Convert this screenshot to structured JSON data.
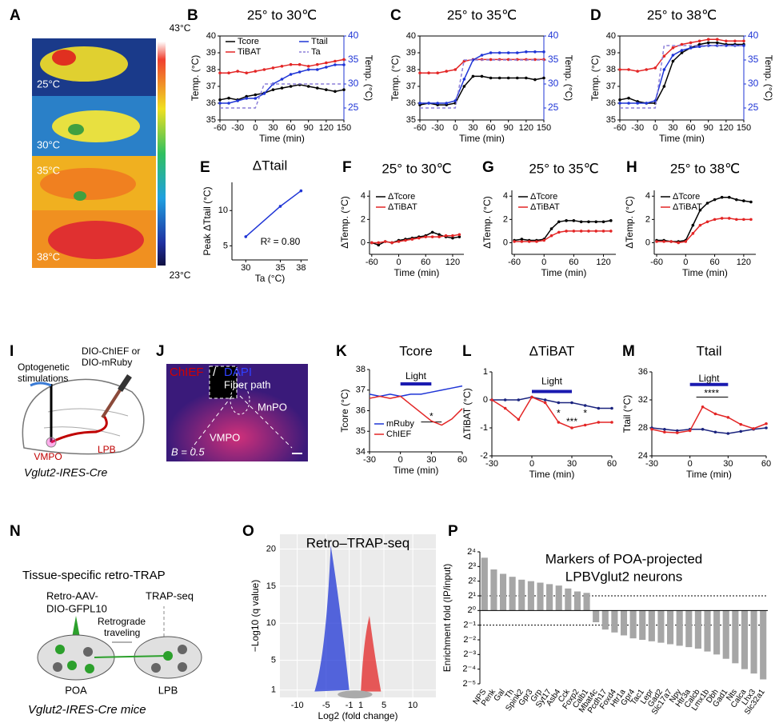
{
  "panel_labels": [
    "A",
    "B",
    "C",
    "D",
    "E",
    "F",
    "G",
    "H",
    "I",
    "J",
    "K",
    "L",
    "M",
    "N",
    "O",
    "P"
  ],
  "panel_a": {
    "scale_max": "43°C",
    "scale_min": "23°C",
    "conditions": [
      "25°C",
      "30°C",
      "35°C",
      "38°C"
    ]
  },
  "panel_i": {
    "fiber": [
      "Optogenetic",
      "stimulations"
    ],
    "virus": [
      "DIO-ChIEF or",
      "DIO-mRuby"
    ],
    "source": "VMPO",
    "target": "LPB",
    "mouse": "Vglut2-IRES-Cre"
  },
  "panel_j": {
    "stain": "ChIEF",
    "separator": "/",
    "counterstain": "DAPI",
    "fiber": "Fiber path",
    "region_1": "MnPO",
    "region_2": "VMPO",
    "bregma": "B = 0.5"
  },
  "panel_n": {
    "title": "Tissue-specific retro-TRAP",
    "virus": [
      "Retro-AAV-",
      "DIO-GFPL10"
    ],
    "readout": "TRAP-seq",
    "transport": [
      "Retrograde",
      "traveling"
    ],
    "source": "POA",
    "target": "LPB",
    "mouse": "Vglut2-IRES-Cre mice"
  },
  "chart_data": [
    {
      "type": "line",
      "title": "25° to 30℃",
      "xlabel": "Time (min)",
      "ylabel": "Temp. (°C)",
      "y2label": "Temp. (°C)",
      "markers": true,
      "x": [
        -60,
        -45,
        -30,
        -15,
        0,
        15,
        30,
        45,
        60,
        75,
        90,
        105,
        120,
        135,
        150
      ],
      "xlim": [
        -60,
        150
      ],
      "xticks": [
        -60,
        -30,
        0,
        30,
        60,
        90,
        120,
        150
      ],
      "ylim": [
        35,
        40
      ],
      "yticks": [
        35,
        36,
        37,
        38,
        39,
        40
      ],
      "y2lim": [
        22.5,
        40
      ],
      "y2ticks": [
        25,
        30,
        35,
        40
      ],
      "series": [
        {
          "name": "Tcore",
          "color": "#000000",
          "values": [
            36.2,
            36.3,
            36.2,
            36.4,
            36.5,
            36.6,
            36.8,
            36.9,
            37.0,
            37.1,
            37.0,
            36.9,
            36.8,
            36.7,
            36.8
          ]
        },
        {
          "name": "TiBAT",
          "color": "#e32626",
          "values": [
            37.8,
            37.8,
            37.9,
            37.8,
            37.9,
            38.0,
            38.1,
            38.2,
            38.3,
            38.3,
            38.2,
            38.3,
            38.4,
            38.5,
            38.6
          ]
        },
        {
          "name": "Ttail",
          "color": "#1f35d6",
          "axis": "y2",
          "values": [
            26,
            26,
            26.5,
            27,
            27,
            28,
            30,
            31,
            32,
            32.5,
            33,
            33,
            33.5,
            34,
            34
          ]
        },
        {
          "name": "Ta",
          "color": "#8c7fd9",
          "axis": "y2",
          "line_style": "dashed",
          "values": [
            25,
            25,
            25,
            25,
            25,
            30,
            30,
            30,
            30,
            30,
            30,
            30,
            30,
            30,
            30
          ]
        }
      ]
    },
    {
      "type": "line",
      "title": "25° to 35℃",
      "xlabel": "Time (min)",
      "ylabel": "Temp. (°C)",
      "y2label": "Temp. (°C)",
      "markers": true,
      "x": [
        -60,
        -45,
        -30,
        -15,
        0,
        15,
        30,
        45,
        60,
        75,
        90,
        105,
        120,
        135,
        150
      ],
      "xlim": [
        -60,
        150
      ],
      "xticks": [
        -60,
        -30,
        0,
        30,
        60,
        90,
        120,
        150
      ],
      "ylim": [
        35,
        40
      ],
      "yticks": [
        35,
        36,
        37,
        38,
        39,
        40
      ],
      "y2lim": [
        22.5,
        40
      ],
      "y2ticks": [
        25,
        30,
        35,
        40
      ],
      "series": [
        {
          "color": "#000000",
          "values": [
            35.9,
            36.0,
            35.9,
            35.9,
            36.0,
            37.0,
            37.6,
            37.6,
            37.5,
            37.5,
            37.5,
            37.5,
            37.5,
            37.4,
            37.5
          ]
        },
        {
          "color": "#e32626",
          "values": [
            37.8,
            37.8,
            37.8,
            37.9,
            38.0,
            38.5,
            38.6,
            38.6,
            38.6,
            38.6,
            38.6,
            38.6,
            38.6,
            38.6,
            38.6
          ]
        },
        {
          "color": "#1f35d6",
          "axis": "y2",
          "values": [
            26,
            26,
            26,
            26,
            26.5,
            31,
            35,
            36,
            36.5,
            36.5,
            36.5,
            36.5,
            36.7,
            36.7,
            36.7
          ]
        },
        {
          "color": "#8c7fd9",
          "axis": "y2",
          "line_style": "dashed",
          "values": [
            25,
            25,
            25,
            25,
            25,
            35,
            35,
            35,
            35,
            35,
            35,
            35,
            35,
            35,
            35
          ]
        }
      ]
    },
    {
      "type": "line",
      "title": "25° to 38℃",
      "xlabel": "Time (min)",
      "ylabel": "Temp. (°C)",
      "y2label": "Temp. (°C)",
      "markers": true,
      "x": [
        -60,
        -45,
        -30,
        -15,
        0,
        15,
        30,
        45,
        60,
        75,
        90,
        105,
        120,
        135,
        150
      ],
      "xlim": [
        -60,
        150
      ],
      "xticks": [
        -60,
        -30,
        0,
        30,
        60,
        90,
        120,
        150
      ],
      "ylim": [
        35,
        40
      ],
      "yticks": [
        35,
        36,
        37,
        38,
        39,
        40
      ],
      "y2lim": [
        22.5,
        40
      ],
      "y2ticks": [
        25,
        30,
        35,
        40
      ],
      "series": [
        {
          "color": "#000000",
          "values": [
            36.2,
            36.3,
            36.1,
            36.0,
            36.0,
            37.0,
            38.5,
            39.0,
            39.3,
            39.5,
            39.6,
            39.6,
            39.5,
            39.5,
            39.5
          ]
        },
        {
          "color": "#e32626",
          "values": [
            38.0,
            38.0,
            37.9,
            38.0,
            38.1,
            38.8,
            39.3,
            39.5,
            39.6,
            39.7,
            39.8,
            39.8,
            39.7,
            39.7,
            39.7
          ]
        },
        {
          "color": "#1f35d6",
          "axis": "y2",
          "values": [
            26,
            26,
            26,
            26,
            26.5,
            33,
            36,
            37,
            37.5,
            37.8,
            38,
            38,
            38,
            38,
            38
          ]
        },
        {
          "color": "#8c7fd9",
          "axis": "y2",
          "line_style": "dashed",
          "values": [
            25,
            25,
            25,
            25,
            25,
            38,
            38,
            38,
            38,
            38,
            38,
            38,
            38,
            38,
            38
          ]
        }
      ]
    },
    {
      "type": "line",
      "title": "ΔTtail",
      "xlabel": "Ta (°C)",
      "ylabel": "Peak ΔTtail (°C)",
      "markers": true,
      "annotations": [
        "R² = 0.80"
      ],
      "x": [
        30,
        35,
        38
      ],
      "xlim": [
        28,
        39
      ],
      "xticks": [
        30,
        35,
        38
      ],
      "ylim": [
        3,
        14
      ],
      "yticks": [
        5,
        10
      ],
      "series": [
        {
          "color": "#1f35d6",
          "values": [
            6.3,
            10.6,
            12.8
          ]
        }
      ]
    },
    {
      "type": "line",
      "title": "25° to 30℃",
      "xlabel": "Time (min)",
      "ylabel": "ΔTemp. (°C)",
      "markers": true,
      "x": [
        -60,
        -45,
        -30,
        -15,
        0,
        15,
        30,
        45,
        60,
        75,
        90,
        105,
        120,
        135
      ],
      "xlim": [
        -65,
        145
      ],
      "xticks": [
        -60,
        0,
        60,
        120
      ],
      "ylim": [
        -1,
        4.5
      ],
      "yticks": [
        0,
        2,
        4
      ],
      "series": [
        {
          "name": "ΔTcore",
          "color": "#000000",
          "values": [
            0,
            -0.2,
            0.1,
            0,
            0.2,
            0.3,
            0.4,
            0.5,
            0.6,
            0.9,
            0.7,
            0.5,
            0.4,
            0.5
          ]
        },
        {
          "name": "ΔTiBAT",
          "color": "#e32626",
          "values": [
            0,
            0,
            0.1,
            0,
            0.1,
            0.2,
            0.3,
            0.4,
            0.5,
            0.5,
            0.5,
            0.6,
            0.6,
            0.7
          ]
        }
      ]
    },
    {
      "type": "line",
      "title": "25° to 35℃",
      "xlabel": "Time (min)",
      "ylabel": "ΔTemp. (°C)",
      "markers": true,
      "x": [
        -60,
        -45,
        -30,
        -15,
        0,
        15,
        30,
        45,
        60,
        75,
        90,
        105,
        120,
        135
      ],
      "xlim": [
        -65,
        145
      ],
      "xticks": [
        -60,
        0,
        60,
        120
      ],
      "ylim": [
        -1,
        4.5
      ],
      "yticks": [
        0,
        2,
        4
      ],
      "series": [
        {
          "name": "ΔTcore",
          "color": "#000000",
          "values": [
            0.2,
            0.3,
            0.2,
            0.2,
            0.3,
            1.2,
            1.8,
            1.9,
            1.9,
            1.8,
            1.8,
            1.8,
            1.8,
            1.9
          ]
        },
        {
          "name": "ΔTiBAT",
          "color": "#e32626",
          "values": [
            0.1,
            0.1,
            0.1,
            0.1,
            0.2,
            0.6,
            0.9,
            1.0,
            1.0,
            1.0,
            1.0,
            1.0,
            1.0,
            1.0
          ]
        }
      ]
    },
    {
      "type": "line",
      "title": "25° to 38℃",
      "xlabel": "Time (min)",
      "ylabel": "ΔTemp. (°C)",
      "markers": true,
      "x": [
        -60,
        -45,
        -30,
        -15,
        0,
        15,
        30,
        45,
        60,
        75,
        90,
        105,
        120,
        135
      ],
      "xlim": [
        -65,
        145
      ],
      "xticks": [
        -60,
        0,
        60,
        120
      ],
      "ylim": [
        -1,
        4.5
      ],
      "yticks": [
        0,
        2,
        4
      ],
      "series": [
        {
          "name": "ΔTcore",
          "color": "#000000",
          "values": [
            0.2,
            0.2,
            0.1,
            0.1,
            0.2,
            1.5,
            2.8,
            3.4,
            3.7,
            3.9,
            3.9,
            3.7,
            3.6,
            3.5
          ]
        },
        {
          "name": "ΔTiBAT",
          "color": "#e32626",
          "values": [
            0.1,
            0.1,
            0.1,
            0,
            0.1,
            0.8,
            1.5,
            1.8,
            2.0,
            2.1,
            2.1,
            2.0,
            2.0,
            2.0
          ]
        }
      ]
    },
    {
      "type": "line",
      "title": "Tcore",
      "xlabel": "Time (min)",
      "ylabel": "Tcore (°C)",
      "markers": false,
      "light": [
        0,
        30
      ],
      "annotations": [
        "Light",
        "*"
      ],
      "x": [
        -30,
        -20,
        -10,
        0,
        10,
        20,
        30,
        40,
        50,
        60
      ],
      "xlim": [
        -30,
        60
      ],
      "xticks": [
        -30,
        0,
        30,
        60
      ],
      "ylim": [
        34,
        38
      ],
      "yticks": [
        34,
        35,
        36,
        37,
        38
      ],
      "series": [
        {
          "name": "mRuby",
          "color": "#1f35d6",
          "values": [
            36.8,
            36.7,
            36.8,
            36.7,
            36.8,
            36.8,
            36.9,
            37.0,
            37.1,
            37.2
          ]
        },
        {
          "name": "ChIEF",
          "color": "#e32626",
          "values": [
            36.6,
            36.7,
            36.6,
            36.7,
            36.3,
            35.9,
            35.5,
            35.3,
            35.6,
            36.1
          ]
        }
      ]
    },
    {
      "type": "line",
      "title": "ΔTiBAT",
      "xlabel": "Time (min)",
      "ylabel": "ΔTiBAT (°C)",
      "markers": true,
      "light": [
        0,
        30
      ],
      "annotations": [
        "Light",
        "*",
        "***",
        "*"
      ],
      "x": [
        -30,
        -20,
        -10,
        0,
        10,
        20,
        30,
        40,
        50,
        60
      ],
      "xlim": [
        -30,
        60
      ],
      "xticks": [
        -30,
        0,
        30,
        60
      ],
      "ylim": [
        -2,
        1
      ],
      "yticks": [
        -2,
        -1,
        0,
        1
      ],
      "series": [
        {
          "color": "#1a237e",
          "values": [
            0,
            0,
            0,
            0.1,
            0,
            -0.1,
            -0.1,
            -0.2,
            -0.3,
            -0.3
          ]
        },
        {
          "color": "#e32626",
          "values": [
            0,
            -0.3,
            -0.7,
            0.1,
            -0.1,
            -0.8,
            -1.0,
            -0.9,
            -0.8,
            -0.8
          ]
        }
      ]
    },
    {
      "type": "line",
      "title": "Ttail",
      "xlabel": "Time (min)",
      "ylabel": "Ttail (°C)",
      "markers": true,
      "light": [
        0,
        30
      ],
      "annotations": [
        "Light",
        "****"
      ],
      "x": [
        -30,
        -20,
        -10,
        0,
        10,
        20,
        30,
        40,
        50,
        60
      ],
      "xlim": [
        -30,
        60
      ],
      "xticks": [
        -30,
        0,
        30,
        60
      ],
      "ylim": [
        24,
        36
      ],
      "yticks": [
        24,
        28,
        32,
        36
      ],
      "series": [
        {
          "color": "#1a237e",
          "values": [
            28,
            27.8,
            27.6,
            27.8,
            27.8,
            27.4,
            27.2,
            27.5,
            27.8,
            28.0
          ]
        },
        {
          "color": "#e32626",
          "values": [
            27.8,
            27.4,
            27.3,
            27.6,
            31.0,
            30.0,
            29.5,
            28.5,
            27.9,
            28.6
          ]
        }
      ]
    },
    {
      "type": "volcano",
      "title": "Retro–TRAP-seq",
      "xlabel": "Log2 (fold change)",
      "ylabel": "−Log10 (q value)",
      "grid": true,
      "background": "#ebebeb",
      "xlim": [
        -13,
        14
      ],
      "xticks": [
        -10,
        -5,
        -1,
        1,
        5,
        10
      ],
      "ylim": [
        0,
        22
      ],
      "yticks": [
        1,
        5,
        10,
        15,
        20
      ],
      "series": []
    },
    {
      "type": "bar",
      "title": "Markers of POA-projected",
      "subtitle": "LPBVglut2 neurons",
      "ylabel": "Enrichment fold (IP/input)",
      "log_scale": true,
      "color": "#a6a6a6",
      "reference_lines": [
        2,
        0.5
      ],
      "ylim": [
        0.03125,
        16
      ],
      "yticks": [
        {
          "value": 16,
          "label": "2⁴"
        },
        {
          "value": 8,
          "label": "2³"
        },
        {
          "value": 4,
          "label": "2²"
        },
        {
          "value": 2,
          "label": "2¹"
        },
        {
          "value": 1,
          "label": "2⁰"
        },
        {
          "value": 0.5,
          "label": "2⁻¹"
        },
        {
          "value": 0.25,
          "label": "2⁻²"
        },
        {
          "value": 0.125,
          "label": "2⁻³"
        },
        {
          "value": 0.0625,
          "label": "2⁻⁴"
        },
        {
          "value": 0.03125,
          "label": "2⁻⁵"
        }
      ],
      "categories": [
        "NPS",
        "Penk",
        "Gal",
        "Th",
        "Spink2",
        "Gpr3",
        "Grp",
        "Syt17",
        "Asb4",
        "Cck",
        "Foxp2",
        "Calb1",
        "Mbat4c",
        "Pcdh17",
        "Foxd4",
        "Htr1a",
        "Gpr4",
        "Tac1",
        "Lepr",
        "Gad2",
        "Slc17a7",
        "Npy",
        "Htr3a",
        "Calcb",
        "Lmx1b",
        "Dbh",
        "Gad1",
        "Nts",
        "Calca",
        "Lhx3",
        "Slc32a1"
      ],
      "values": [
        12.13,
        6.96,
        5.66,
        4.92,
        4.29,
        4,
        3.73,
        3.48,
        3.25,
        2.83,
        2.46,
        2.3,
        0.574,
        0.406,
        0.354,
        0.308,
        0.268,
        0.25,
        0.233,
        0.218,
        0.203,
        0.189,
        0.177,
        0.165,
        0.144,
        0.125,
        0.102,
        0.0825,
        0.0625,
        0.0508,
        0.0385
      ]
    }
  ]
}
